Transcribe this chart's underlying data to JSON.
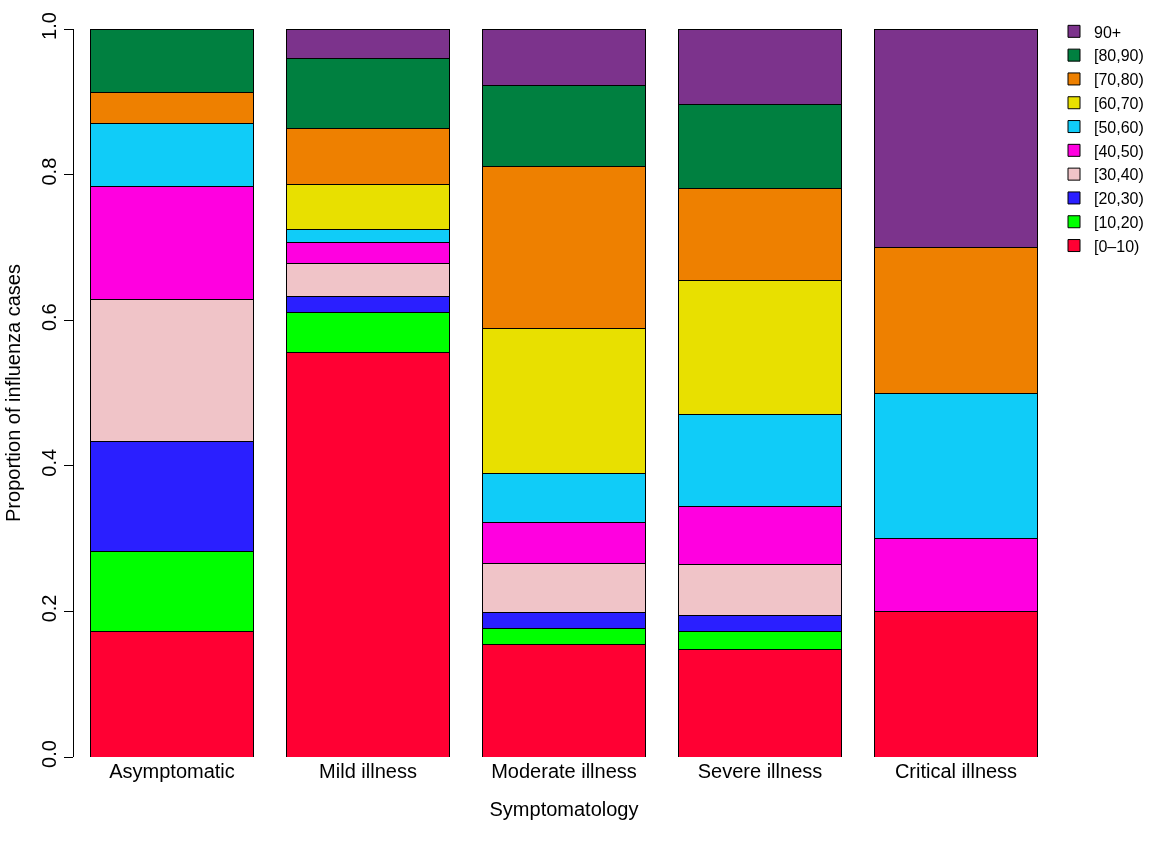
{
  "chart_data": {
    "type": "bar",
    "stacked": true,
    "xlabel": "Symptomatology",
    "ylabel": "Proportion of influenza cases",
    "categories": [
      "Asymptomatic",
      "Mild illness",
      "Moderate illness",
      "Severe illness",
      "Critical illness"
    ],
    "ylim": [
      0,
      1
    ],
    "yticks": [
      {
        "value": 0,
        "label": "0.0"
      },
      {
        "value": 0.2,
        "label": "0.2"
      },
      {
        "value": 0.4,
        "label": "0.4"
      },
      {
        "value": 0.6,
        "label": "0.6"
      },
      {
        "value": 0.8,
        "label": "0.8"
      },
      {
        "value": 1,
        "label": "1.0"
      }
    ],
    "grid": false,
    "legend": "top right",
    "series": [
      {
        "name": "[0–10)",
        "color": "#ff0033",
        "values": [
          0.173,
          0.556,
          0.155,
          0.148,
          0.2
        ]
      },
      {
        "name": "[10,20)",
        "color": "#00ff00",
        "values": [
          0.109,
          0.055,
          0.022,
          0.024,
          null
        ]
      },
      {
        "name": "[20,30)",
        "color": "#2a1fff",
        "values": [
          0.152,
          0.022,
          0.022,
          0.023,
          null
        ]
      },
      {
        "name": "[30,40)",
        "color": "#f0c4c8",
        "values": [
          0.195,
          0.045,
          0.067,
          0.069,
          null
        ]
      },
      {
        "name": "[40,50)",
        "color": "#ff00e0",
        "values": [
          0.154,
          0.029,
          0.056,
          0.08,
          0.1
        ]
      },
      {
        "name": "[50,60)",
        "color": "#10ccf8",
        "values": [
          0.087,
          0.018,
          0.067,
          0.126,
          0.2
        ]
      },
      {
        "name": "[60,70)",
        "color": "#e8e000",
        "values": [
          null,
          0.061,
          0.199,
          0.184,
          null
        ]
      },
      {
        "name": "[70,80)",
        "color": "#ee8000",
        "values": [
          0.043,
          0.078,
          0.223,
          0.127,
          0.2
        ]
      },
      {
        "name": "[80,90)",
        "color": "#008040",
        "values": [
          0.087,
          0.096,
          0.112,
          0.115,
          null
        ]
      },
      {
        "name": "90+",
        "color": "#7c338c",
        "values": [
          null,
          0.04,
          0.077,
          0.104,
          0.3
        ]
      }
    ]
  }
}
